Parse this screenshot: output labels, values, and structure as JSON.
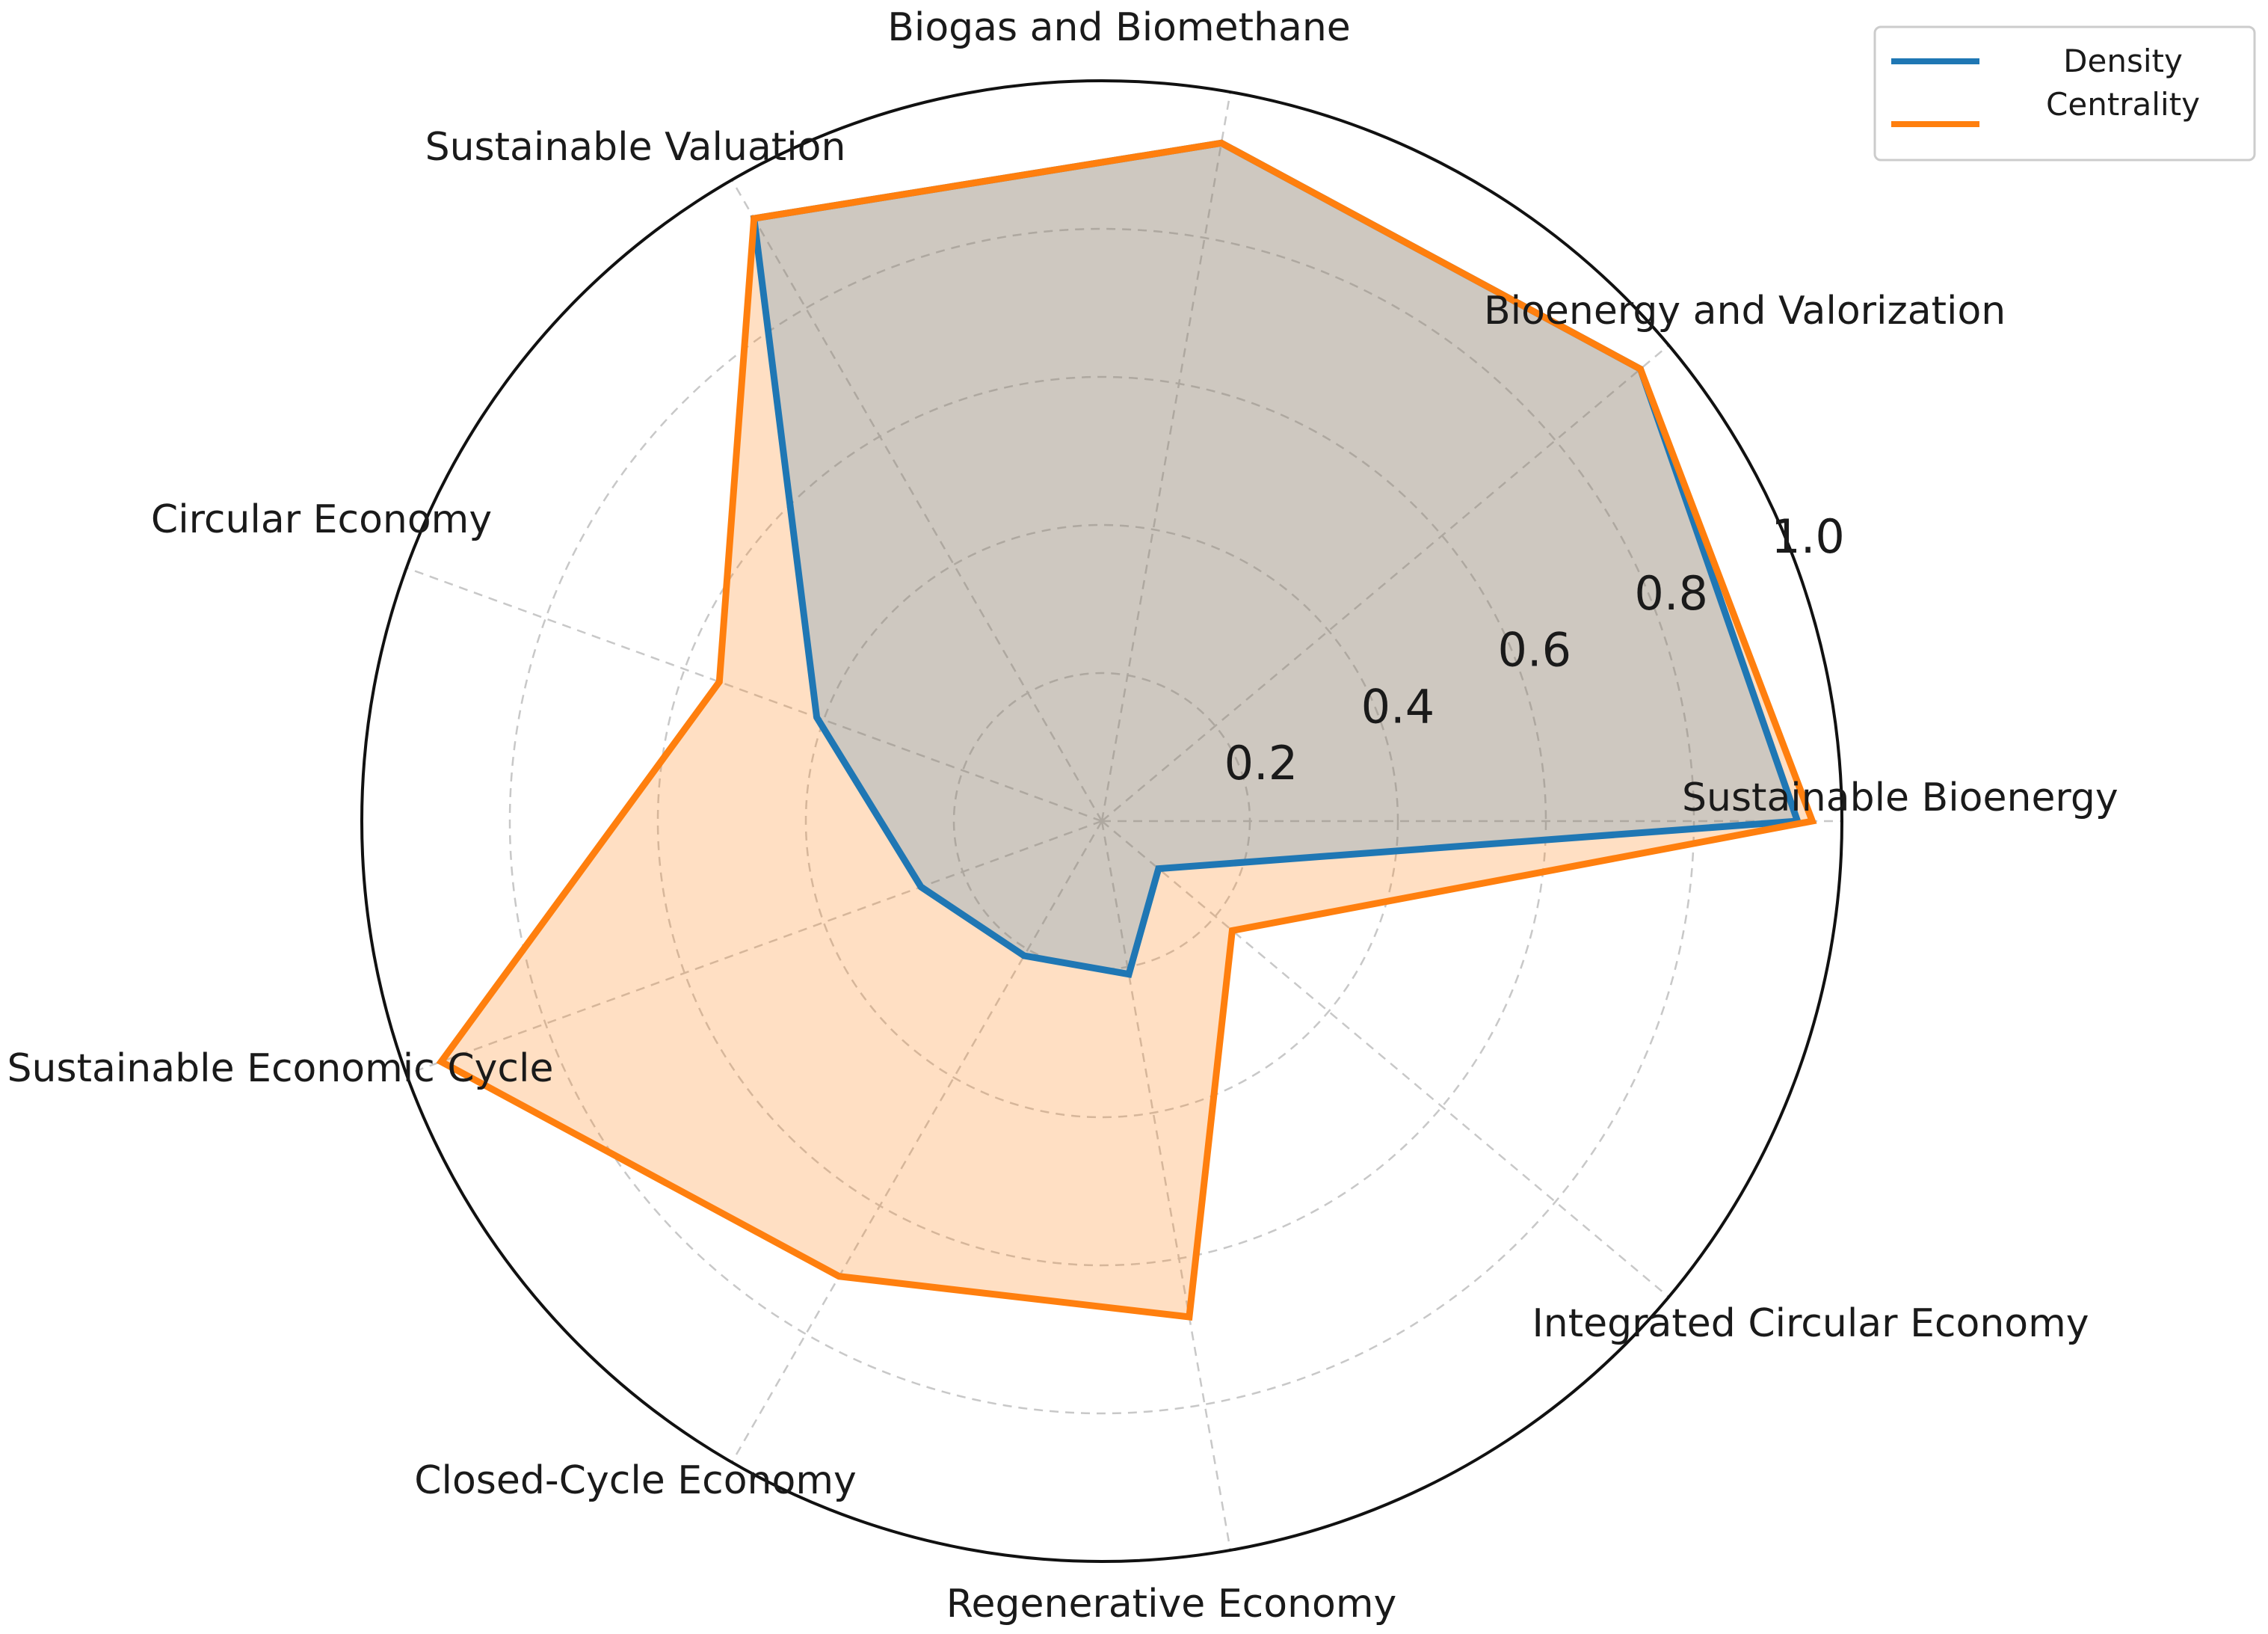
{
  "chart_data": {
    "type": "radar",
    "categories": [
      "Sustainable Bioenergy",
      "Bioenergy and Valorization",
      "Biogas and Biomethane",
      "Sustainable Valuation",
      "Circular Economy",
      "Sustainable Economic Cycle",
      "Closed-Cycle Economy",
      "Regenerative Economy",
      "Integrated Circular Economy"
    ],
    "series": [
      {
        "name": "Density",
        "color": "#1f77b4",
        "values": [
          0.94,
          0.95,
          0.93,
          0.94,
          0.41,
          0.26,
          0.21,
          0.21,
          0.1
        ]
      },
      {
        "name": "Centrality",
        "color": "#ff7f0e",
        "values": [
          0.96,
          0.95,
          0.93,
          0.94,
          0.55,
          0.95,
          0.71,
          0.68,
          0.23
        ]
      }
    ],
    "rlim": [
      0,
      1.0
    ],
    "r_ticks": [
      "0.2",
      "0.4",
      "0.6",
      "0.8",
      "1.0"
    ],
    "r_tick_values": [
      0.2,
      0.4,
      0.6,
      0.8,
      1.0
    ],
    "legend": {
      "position": "top-right"
    },
    "grid": true
  }
}
